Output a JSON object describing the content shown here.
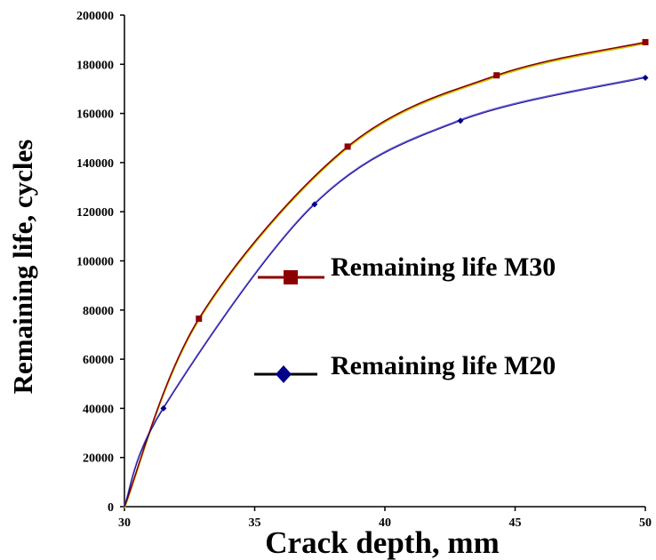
{
  "chart_data": {
    "type": "line",
    "xlabel": "Crack depth, mm",
    "ylabel": "Remaining life, cycles",
    "xlim": [
      30,
      50
    ],
    "ylim": [
      0,
      200000
    ],
    "x_ticks": [
      "30",
      "35",
      "40",
      "45",
      "50"
    ],
    "y_ticks": [
      "0",
      "20000",
      "40000",
      "60000",
      "80000",
      "100000",
      "120000",
      "140000",
      "160000",
      "180000",
      "200000"
    ],
    "grid": false,
    "legend_position": "center-right",
    "series": [
      {
        "name": "Remaining life M30",
        "color": "#8B0000",
        "marker": "square",
        "x": [
          30,
          32.86,
          38.57,
          44.29,
          50
        ],
        "y": [
          0,
          76500,
          146500,
          175500,
          189000
        ]
      },
      {
        "name": "Remaining life M20",
        "color": "#00008B",
        "marker": "diamond",
        "x": [
          30,
          31.5,
          37.3,
          42.9,
          50
        ],
        "y": [
          0,
          40000,
          123000,
          157000,
          174500
        ]
      }
    ],
    "trendlines": [
      {
        "color": "#C8C800",
        "follows": "Remaining life M30"
      },
      {
        "color": "#6A5ACD",
        "follows": "Remaining life M20"
      }
    ]
  }
}
